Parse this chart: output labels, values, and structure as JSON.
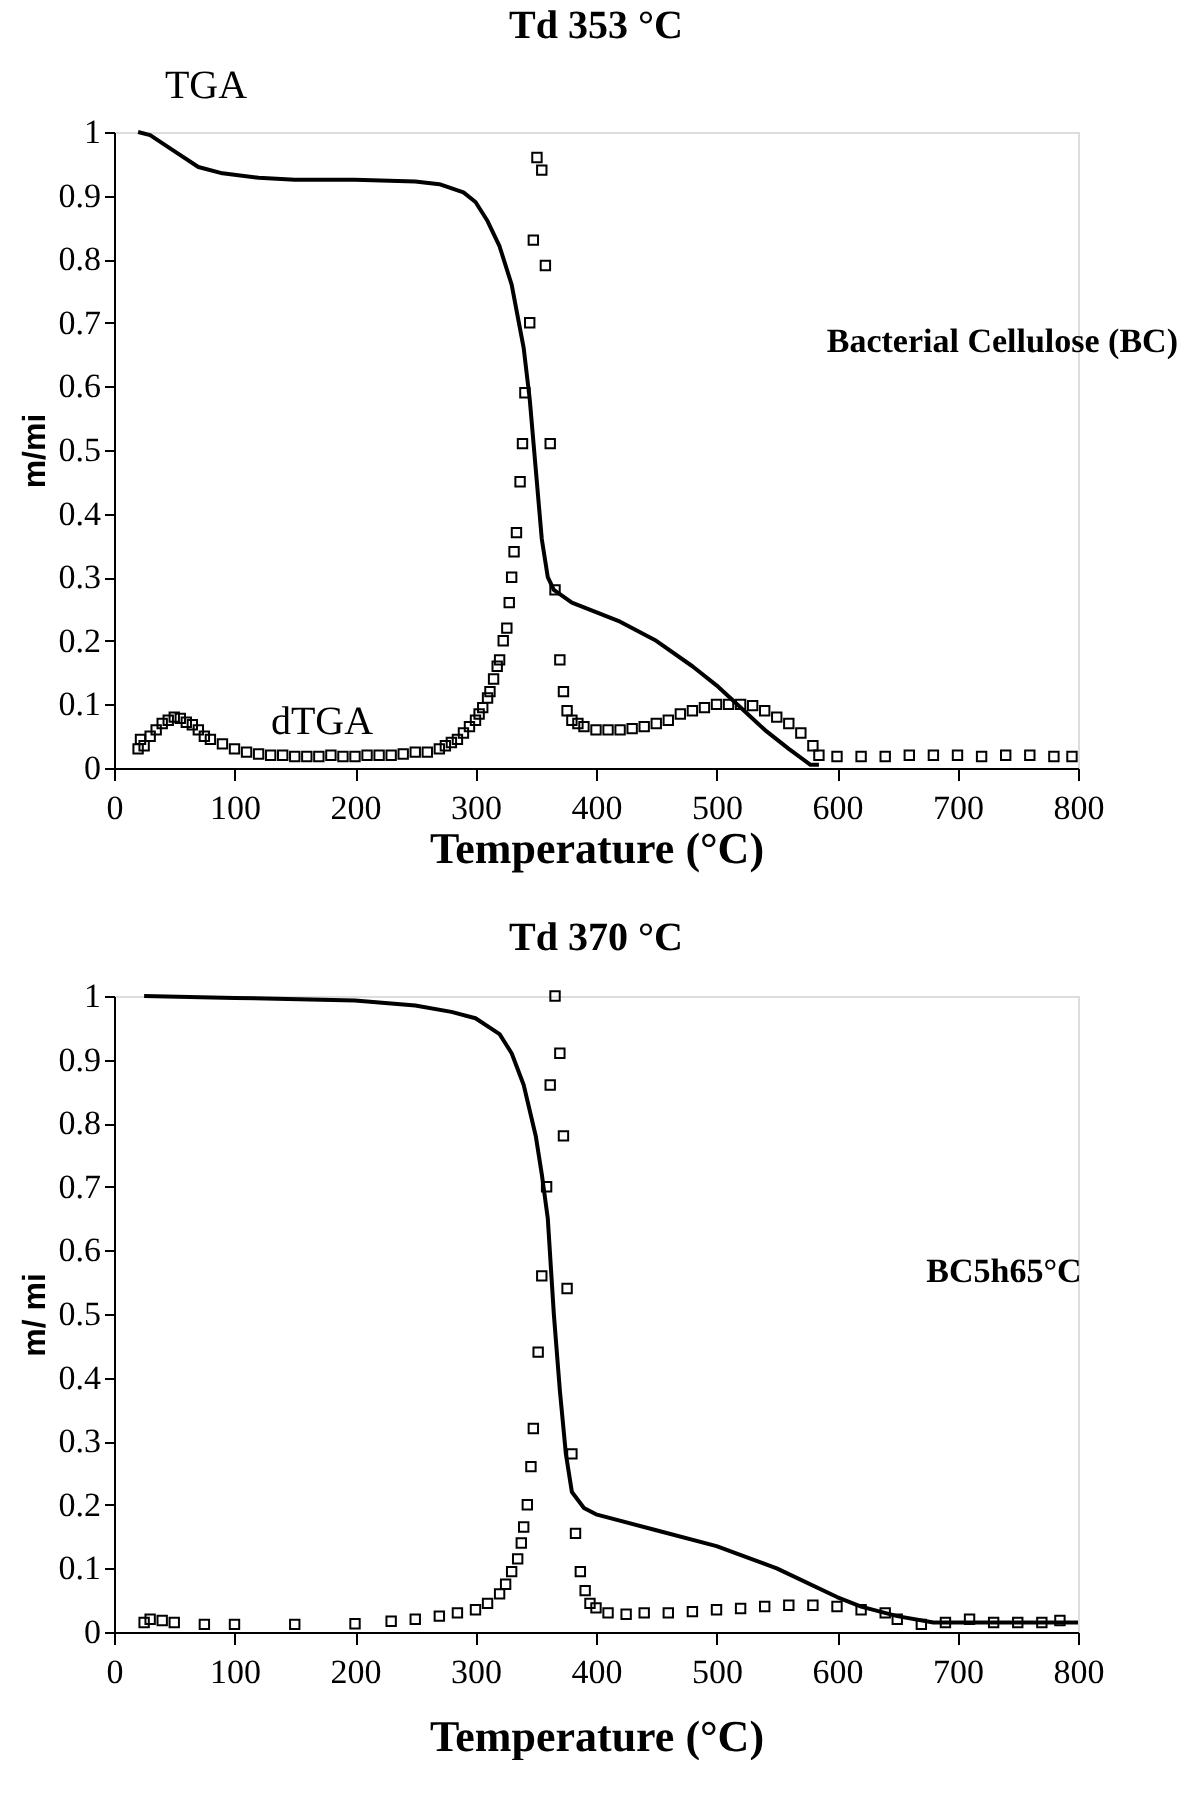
{
  "chart_data": [
    {
      "type": "line",
      "title": "Td 353 °C",
      "xlabel": "Temperature (°C)",
      "ylabel": "m/mi",
      "xlim": [
        0,
        800
      ],
      "xticks": [
        0,
        100,
        200,
        300,
        400,
        500,
        600,
        700,
        800
      ],
      "ylim": [
        0,
        1
      ],
      "yticks": [
        0,
        0.1,
        0.2,
        0.3,
        0.4,
        0.5,
        0.6,
        0.7,
        0.8,
        0.9,
        1
      ],
      "grid": false,
      "annotations": [
        "Bacterial Cellulose (BC)"
      ],
      "series": [
        {
          "name": "TGA",
          "type": "line",
          "color": "#000000",
          "line_style": "solid",
          "x": [
            20,
            30,
            50,
            70,
            90,
            120,
            150,
            200,
            250,
            270,
            290,
            300,
            310,
            320,
            330,
            340,
            345,
            350,
            355,
            360,
            365,
            380,
            400,
            420,
            450,
            480,
            500,
            520,
            540,
            560,
            578,
            585
          ],
          "values": [
            1.0,
            0.995,
            0.97,
            0.945,
            0.935,
            0.928,
            0.925,
            0.925,
            0.922,
            0.918,
            0.905,
            0.89,
            0.86,
            0.82,
            0.76,
            0.66,
            0.58,
            0.47,
            0.36,
            0.3,
            0.28,
            0.26,
            0.245,
            0.23,
            0.2,
            0.16,
            0.13,
            0.095,
            0.06,
            0.03,
            0.005,
            0.005
          ]
        },
        {
          "name": "dTGA",
          "type": "scatter",
          "marker": "square",
          "color": "#000000",
          "x": [
            20,
            22,
            25,
            30,
            35,
            40,
            45,
            50,
            55,
            60,
            65,
            70,
            75,
            80,
            90,
            100,
            110,
            120,
            130,
            140,
            150,
            160,
            170,
            180,
            190,
            200,
            210,
            220,
            230,
            240,
            250,
            260,
            270,
            275,
            280,
            285,
            290,
            295,
            300,
            303,
            306,
            310,
            312,
            315,
            318,
            320,
            323,
            326,
            328,
            330,
            332,
            334,
            337,
            339,
            341,
            345,
            348,
            351,
            355,
            358,
            362,
            366,
            370,
            373,
            376,
            380,
            385,
            390,
            400,
            410,
            420,
            430,
            440,
            450,
            460,
            470,
            480,
            490,
            500,
            510,
            520,
            530,
            540,
            550,
            560,
            570,
            580,
            585,
            600,
            620,
            640,
            660,
            680,
            700,
            720,
            740,
            760,
            780,
            795
          ],
          "values": [
            0.03,
            0.045,
            0.035,
            0.05,
            0.06,
            0.07,
            0.075,
            0.08,
            0.078,
            0.072,
            0.068,
            0.06,
            0.05,
            0.045,
            0.038,
            0.03,
            0.025,
            0.022,
            0.02,
            0.02,
            0.018,
            0.018,
            0.018,
            0.02,
            0.018,
            0.018,
            0.02,
            0.02,
            0.02,
            0.022,
            0.025,
            0.025,
            0.03,
            0.035,
            0.04,
            0.045,
            0.055,
            0.065,
            0.075,
            0.085,
            0.095,
            0.11,
            0.12,
            0.14,
            0.16,
            0.17,
            0.2,
            0.22,
            0.26,
            0.3,
            0.34,
            0.37,
            0.45,
            0.51,
            0.59,
            0.7,
            0.83,
            0.96,
            0.94,
            0.79,
            0.51,
            0.28,
            0.17,
            0.12,
            0.09,
            0.075,
            0.07,
            0.065,
            0.06,
            0.06,
            0.06,
            0.062,
            0.065,
            0.07,
            0.075,
            0.085,
            0.09,
            0.095,
            0.1,
            0.1,
            0.1,
            0.098,
            0.09,
            0.08,
            0.07,
            0.055,
            0.035,
            0.02,
            0.018,
            0.018,
            0.018,
            0.02,
            0.02,
            0.02,
            0.018,
            0.02,
            0.02,
            0.018,
            0.018
          ]
        }
      ]
    },
    {
      "type": "line",
      "title": "Td 370 °C",
      "xlabel": "Temperature (°C)",
      "ylabel": "m/ mi",
      "xlim": [
        0,
        800
      ],
      "xticks": [
        0,
        100,
        200,
        300,
        400,
        500,
        600,
        700,
        800
      ],
      "ylim": [
        0,
        1
      ],
      "yticks": [
        0,
        0.1,
        0.2,
        0.3,
        0.4,
        0.5,
        0.6,
        0.7,
        0.8,
        0.9,
        1
      ],
      "grid": false,
      "annotations": [
        "BC5h65°C"
      ],
      "series": [
        {
          "type": "line",
          "color": "#000000",
          "line_style": "solid",
          "x": [
            25,
            100,
            200,
            250,
            280,
            300,
            320,
            330,
            340,
            350,
            355,
            360,
            365,
            370,
            375,
            380,
            390,
            400,
            450,
            500,
            550,
            600,
            620,
            650,
            680,
            700,
            800
          ],
          "values": [
            1.0,
            0.997,
            0.993,
            0.985,
            0.975,
            0.965,
            0.94,
            0.91,
            0.86,
            0.78,
            0.72,
            0.65,
            0.5,
            0.38,
            0.28,
            0.22,
            0.195,
            0.185,
            0.16,
            0.135,
            0.1,
            0.055,
            0.04,
            0.025,
            0.015,
            0.015,
            0.015
          ]
        },
        {
          "type": "scatter",
          "marker": "square",
          "color": "#000000",
          "x": [
            25,
            30,
            40,
            50,
            75,
            100,
            150,
            200,
            230,
            250,
            270,
            285,
            300,
            310,
            320,
            325,
            330,
            335,
            338,
            340,
            343,
            346,
            348,
            352,
            355,
            359,
            362,
            366,
            370,
            373,
            376,
            380,
            383,
            387,
            391,
            395,
            400,
            410,
            425,
            440,
            460,
            480,
            500,
            520,
            540,
            560,
            580,
            600,
            620,
            640,
            650,
            670,
            690,
            710,
            730,
            750,
            770,
            785
          ],
          "values": [
            0.015,
            0.02,
            0.018,
            0.015,
            0.012,
            0.012,
            0.012,
            0.013,
            0.017,
            0.02,
            0.025,
            0.03,
            0.035,
            0.045,
            0.06,
            0.075,
            0.095,
            0.115,
            0.14,
            0.165,
            0.2,
            0.26,
            0.32,
            0.44,
            0.56,
            0.7,
            0.86,
            1.0,
            0.91,
            0.78,
            0.54,
            0.28,
            0.155,
            0.095,
            0.065,
            0.045,
            0.038,
            0.03,
            0.028,
            0.03,
            0.03,
            0.032,
            0.035,
            0.037,
            0.04,
            0.042,
            0.042,
            0.04,
            0.035,
            0.03,
            0.02,
            0.012,
            0.015,
            0.02,
            0.015,
            0.015,
            0.015,
            0.018
          ]
        }
      ]
    }
  ]
}
